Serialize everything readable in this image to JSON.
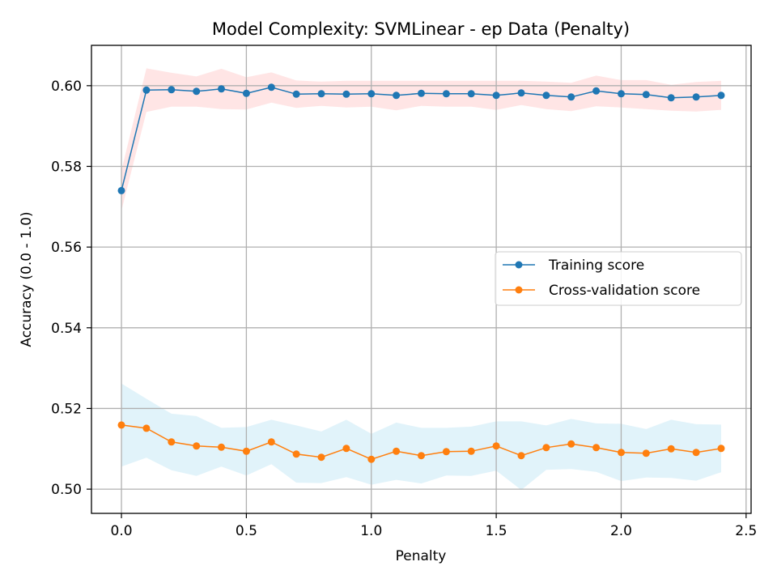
{
  "chart_data": {
    "type": "line",
    "title": "Model Complexity: SVMLinear - ep Data (Penalty)",
    "xlabel": "Penalty",
    "ylabel": "Accuracy (0.0 - 1.0)",
    "xlim": [
      -0.12,
      2.52
    ],
    "ylim": [
      0.494,
      0.61
    ],
    "xticks": [
      0.0,
      0.5,
      1.0,
      1.5,
      2.0,
      2.5
    ],
    "xtick_labels": [
      "0.0",
      "0.5",
      "1.0",
      "1.5",
      "2.0",
      "2.5"
    ],
    "yticks": [
      0.5,
      0.52,
      0.54,
      0.56,
      0.58,
      0.6
    ],
    "ytick_labels": [
      "0.50",
      "0.52",
      "0.54",
      "0.56",
      "0.58",
      "0.60"
    ],
    "grid": true,
    "legend_position": "center-right",
    "x": [
      0.0,
      0.1,
      0.2,
      0.3,
      0.4,
      0.5,
      0.6,
      0.7,
      0.8,
      0.9,
      1.0,
      1.1,
      1.2,
      1.3,
      1.4,
      1.5,
      1.6,
      1.7,
      1.8,
      1.9,
      2.0,
      2.1,
      2.2,
      2.3,
      2.4
    ],
    "series": [
      {
        "name": "Training score",
        "color": "#1f77b4",
        "band_color": "#ff9999",
        "values": [
          0.574,
          0.5989,
          0.599,
          0.5986,
          0.5992,
          0.5981,
          0.5996,
          0.5979,
          0.598,
          0.5979,
          0.598,
          0.5976,
          0.5981,
          0.598,
          0.598,
          0.5976,
          0.5982,
          0.5976,
          0.5972,
          0.5987,
          0.598,
          0.5978,
          0.597,
          0.5972,
          0.5976
        ],
        "upper": [
          0.579,
          0.6043,
          0.6032,
          0.6023,
          0.6042,
          0.6021,
          0.6033,
          0.6013,
          0.601,
          0.6012,
          0.6012,
          0.6012,
          0.6012,
          0.6012,
          0.6012,
          0.6012,
          0.6012,
          0.601,
          0.6007,
          0.6025,
          0.6014,
          0.6014,
          0.6002,
          0.6009,
          0.6012
        ],
        "lower": [
          0.569,
          0.5935,
          0.5948,
          0.5948,
          0.5942,
          0.5941,
          0.5958,
          0.5945,
          0.595,
          0.5946,
          0.5948,
          0.5939,
          0.595,
          0.5948,
          0.5948,
          0.594,
          0.5952,
          0.5942,
          0.5937,
          0.5949,
          0.5946,
          0.5942,
          0.5938,
          0.5936,
          0.594
        ]
      },
      {
        "name": "Cross-validation score",
        "color": "#ff7f0e",
        "band_color": "#87ceeb",
        "values": [
          0.5159,
          0.5151,
          0.5117,
          0.5107,
          0.5104,
          0.5094,
          0.5117,
          0.5087,
          0.5079,
          0.5101,
          0.5074,
          0.5094,
          0.5083,
          0.5093,
          0.5094,
          0.5107,
          0.5083,
          0.5103,
          0.5112,
          0.5103,
          0.5091,
          0.5089,
          0.51,
          0.5091,
          0.5101
        ],
        "upper": [
          0.5262,
          0.5224,
          0.5187,
          0.5181,
          0.5152,
          0.5154,
          0.5172,
          0.5158,
          0.5143,
          0.5172,
          0.5137,
          0.5165,
          0.5152,
          0.5152,
          0.5155,
          0.5168,
          0.5168,
          0.5158,
          0.5174,
          0.5163,
          0.5162,
          0.5149,
          0.5172,
          0.5161,
          0.516
        ],
        "lower": [
          0.5056,
          0.5078,
          0.5047,
          0.5033,
          0.5056,
          0.5034,
          0.5062,
          0.5016,
          0.5015,
          0.503,
          0.5011,
          0.5023,
          0.5014,
          0.5034,
          0.5033,
          0.5046,
          0.4998,
          0.5048,
          0.505,
          0.5043,
          0.502,
          0.5029,
          0.5028,
          0.5021,
          0.5042
        ]
      }
    ]
  }
}
